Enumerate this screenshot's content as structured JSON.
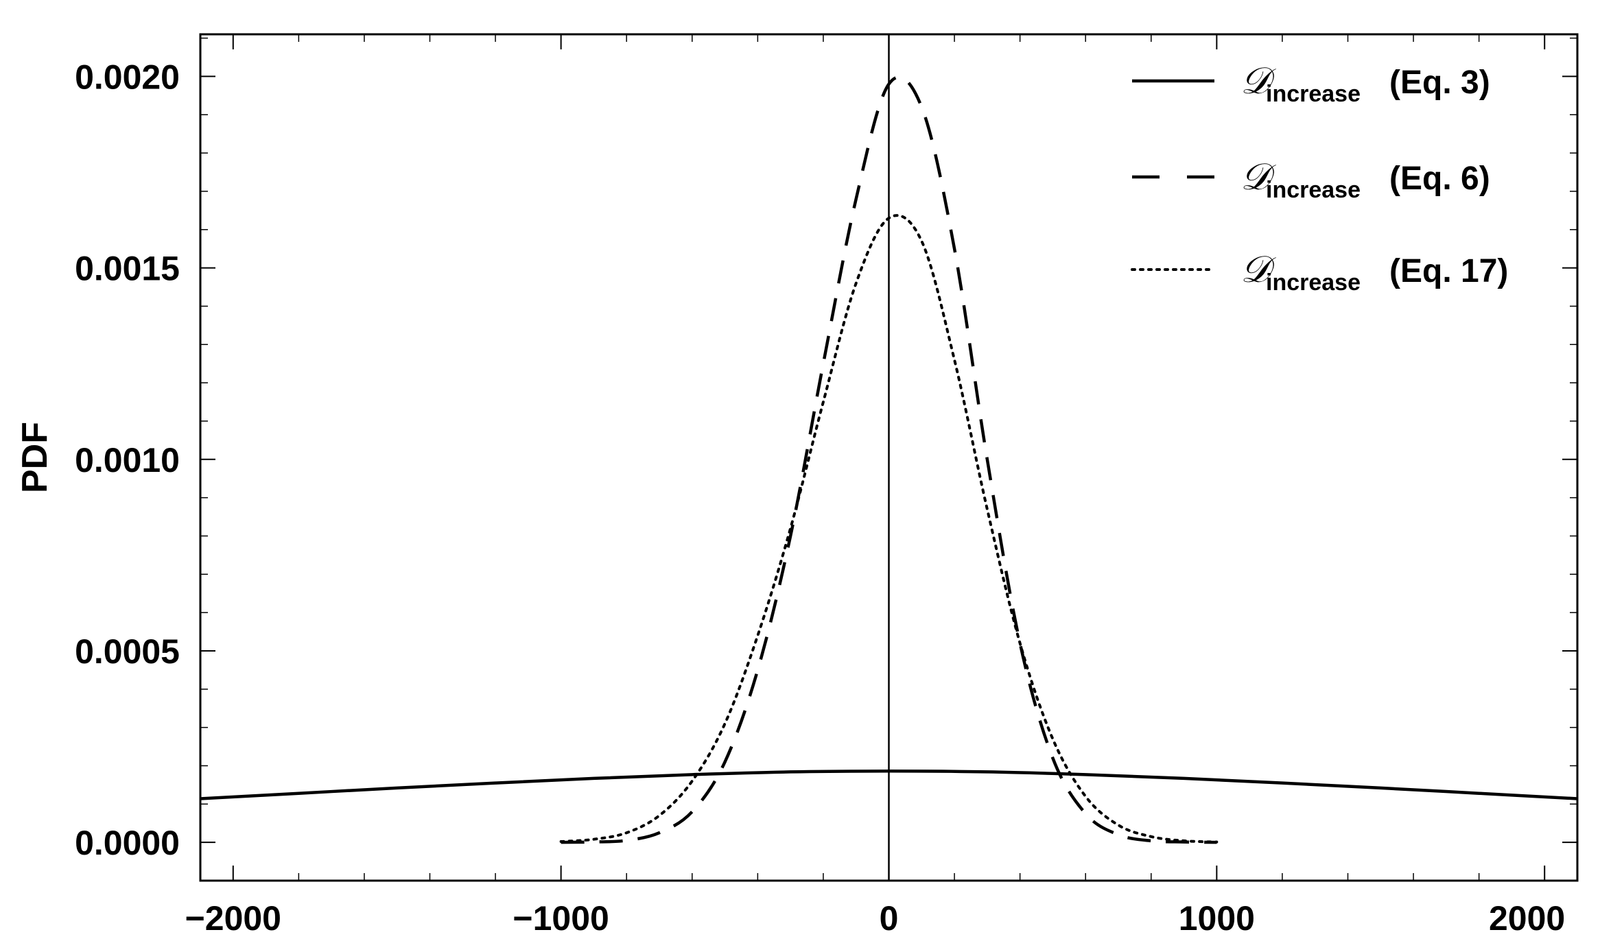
{
  "chart_data": {
    "type": "line",
    "title": "",
    "xlabel": "",
    "ylabel": "PDF",
    "xlim": [
      -2100,
      2100
    ],
    "ylim": [
      -0.0001,
      0.00211
    ],
    "x_ticks": [
      -2000,
      -1000,
      0,
      1000,
      2000
    ],
    "x_tick_labels": [
      "−2000",
      "−1000",
      "0",
      "1000",
      "2000"
    ],
    "y_ticks": [
      0.0,
      0.0005,
      0.001,
      0.0015,
      0.002
    ],
    "y_tick_labels": [
      "0.0000",
      "0.0005",
      "0.0010",
      "0.0015",
      "0.0020"
    ],
    "grid": false,
    "legend_position": "top-right",
    "series": [
      {
        "name": "𝒟 increase (Eq. 3)",
        "legend_symbol": "𝒟",
        "legend_subscript": "increase",
        "legend_suffix": "(Eq. 3)",
        "style": "solid",
        "x": [
          -2100,
          -1800,
          -1500,
          -1200,
          -900,
          -600,
          -300,
          0,
          300,
          600,
          900,
          1200,
          1500,
          1800,
          2100
        ],
        "y": [
          0.000114,
          0.000128,
          0.000142,
          0.000155,
          0.000167,
          0.000177,
          0.000184,
          0.000186,
          0.000184,
          0.000177,
          0.000167,
          0.000155,
          0.000142,
          0.000128,
          0.000114
        ]
      },
      {
        "name": "𝒟 increase (Eq. 6)",
        "legend_symbol": "𝒟",
        "legend_subscript": "increase",
        "legend_suffix": "(Eq. 6)",
        "style": "dashed",
        "x": [
          -1000,
          -900,
          -800,
          -700,
          -600,
          -500,
          -400,
          -300,
          -200,
          -100,
          0,
          100,
          200,
          300,
          400,
          500,
          600,
          700,
          800,
          900,
          1000
        ],
        "y": [
          0.0,
          1e-06,
          5e-06,
          2.5e-05,
          8e-05,
          0.00021,
          0.00045,
          0.0008,
          0.00125,
          0.00168,
          0.00198,
          0.00192,
          0.00155,
          0.001,
          0.00052,
          0.00022,
          7.5e-05,
          2e-05,
          4e-06,
          1e-06,
          0.0
        ]
      },
      {
        "name": "𝒟 increase (Eq. 17)",
        "legend_symbol": "𝒟",
        "legend_subscript": "increase",
        "legend_suffix": "(Eq. 17)",
        "style": "dotted",
        "x": [
          -1000,
          -900,
          -800,
          -700,
          -600,
          -500,
          -400,
          -300,
          -200,
          -100,
          0,
          100,
          200,
          300,
          400,
          500,
          600,
          700,
          800,
          900,
          1000
        ],
        "y": [
          2e-06,
          8e-06,
          2.5e-05,
          7e-05,
          0.00016,
          0.00031,
          0.00054,
          0.00082,
          0.00115,
          0.00146,
          0.00163,
          0.00157,
          0.00126,
          0.00087,
          0.00052,
          0.00027,
          0.00012,
          4.5e-05,
          1.5e-05,
          4e-06,
          1e-06
        ]
      }
    ],
    "reference_lines": [
      {
        "axis": "x",
        "value": 0
      }
    ]
  }
}
